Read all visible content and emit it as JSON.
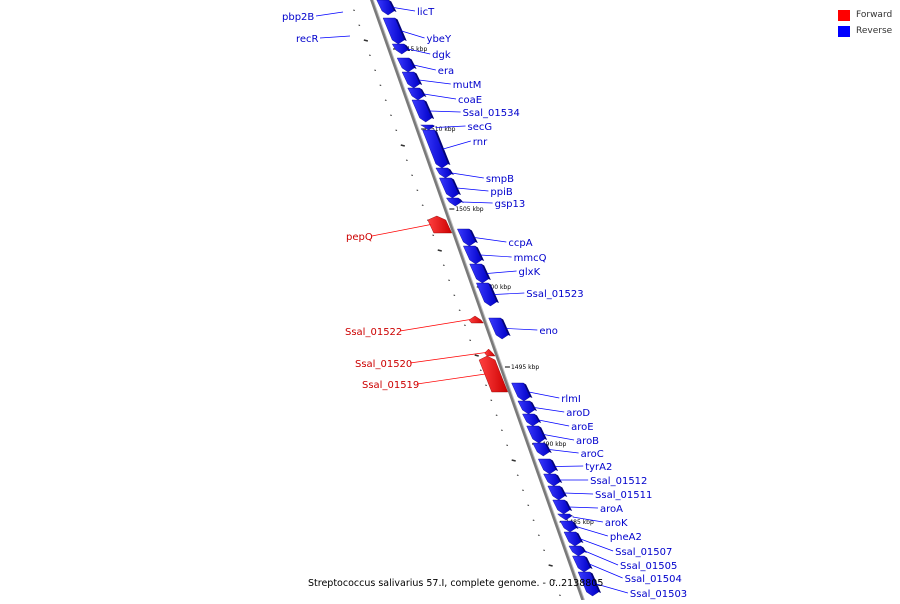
{
  "legend": {
    "forward_label": "Forward",
    "reverse_label": "Reverse",
    "forward_color": "#ff0000",
    "reverse_color": "#0000ff"
  },
  "caption": "Streptococcus salivarius 57.I, complete genome. - 0..2138805",
  "kbp_markers": [
    "1515 kbp",
    "1510 kbp",
    "1505 kbp",
    "1500 kbp",
    "1495 kbp",
    "1490 kbp",
    "1485 kbp"
  ],
  "genes": {
    "forward": [
      "pepQ",
      "Ssal_01522",
      "Ssal_01520",
      "Ssal_01519"
    ],
    "reverse_left": [
      "pbp2B",
      "recR"
    ],
    "reverse": [
      "licT",
      "ybeY",
      "dgk",
      "era",
      "mutM",
      "coaE",
      "Ssal_01534",
      "secG",
      "rnr",
      "smpB",
      "ppiB",
      "gsp13",
      "ccpA",
      "mmcQ",
      "glxK",
      "Ssal_01523",
      "eno",
      "rlmI",
      "aroD",
      "aroE",
      "aroB",
      "aroC",
      "tyrA2",
      "Ssal_01512",
      "Ssal_01511",
      "aroA",
      "aroK",
      "pheA2",
      "Ssal_01507",
      "Ssal_01505",
      "Ssal_01504",
      "Ssal_01503"
    ]
  }
}
